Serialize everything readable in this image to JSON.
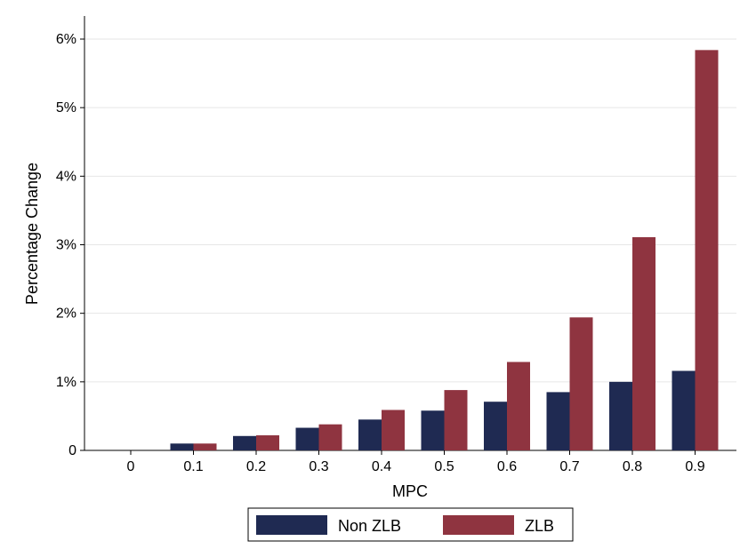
{
  "chart_data": {
    "type": "bar",
    "xlabel": "MPC",
    "ylabel": "Percentage Change",
    "categories": [
      "0",
      "0.1",
      "0.2",
      "0.3",
      "0.4",
      "0.5",
      "0.6",
      "0.7",
      "0.8",
      "0.9"
    ],
    "series": [
      {
        "name": "Non ZLB",
        "color": "#1f2a52",
        "values": [
          0,
          0.1,
          0.21,
          0.33,
          0.45,
          0.58,
          0.71,
          0.85,
          1.0,
          1.16
        ]
      },
      {
        "name": "ZLB",
        "color": "#8f3440",
        "values": [
          0,
          0.1,
          0.22,
          0.38,
          0.59,
          0.88,
          1.29,
          1.94,
          3.11,
          5.84
        ]
      }
    ],
    "yticks": [
      {
        "value": 0,
        "label": "0"
      },
      {
        "value": 1,
        "label": "1%"
      },
      {
        "value": 2,
        "label": "2%"
      },
      {
        "value": 3,
        "label": "3%"
      },
      {
        "value": 4,
        "label": "4%"
      },
      {
        "value": 5,
        "label": "5%"
      },
      {
        "value": 6,
        "label": "6%"
      }
    ],
    "ylim": [
      0,
      6
    ],
    "grid": true,
    "legend_position": "bottom"
  }
}
